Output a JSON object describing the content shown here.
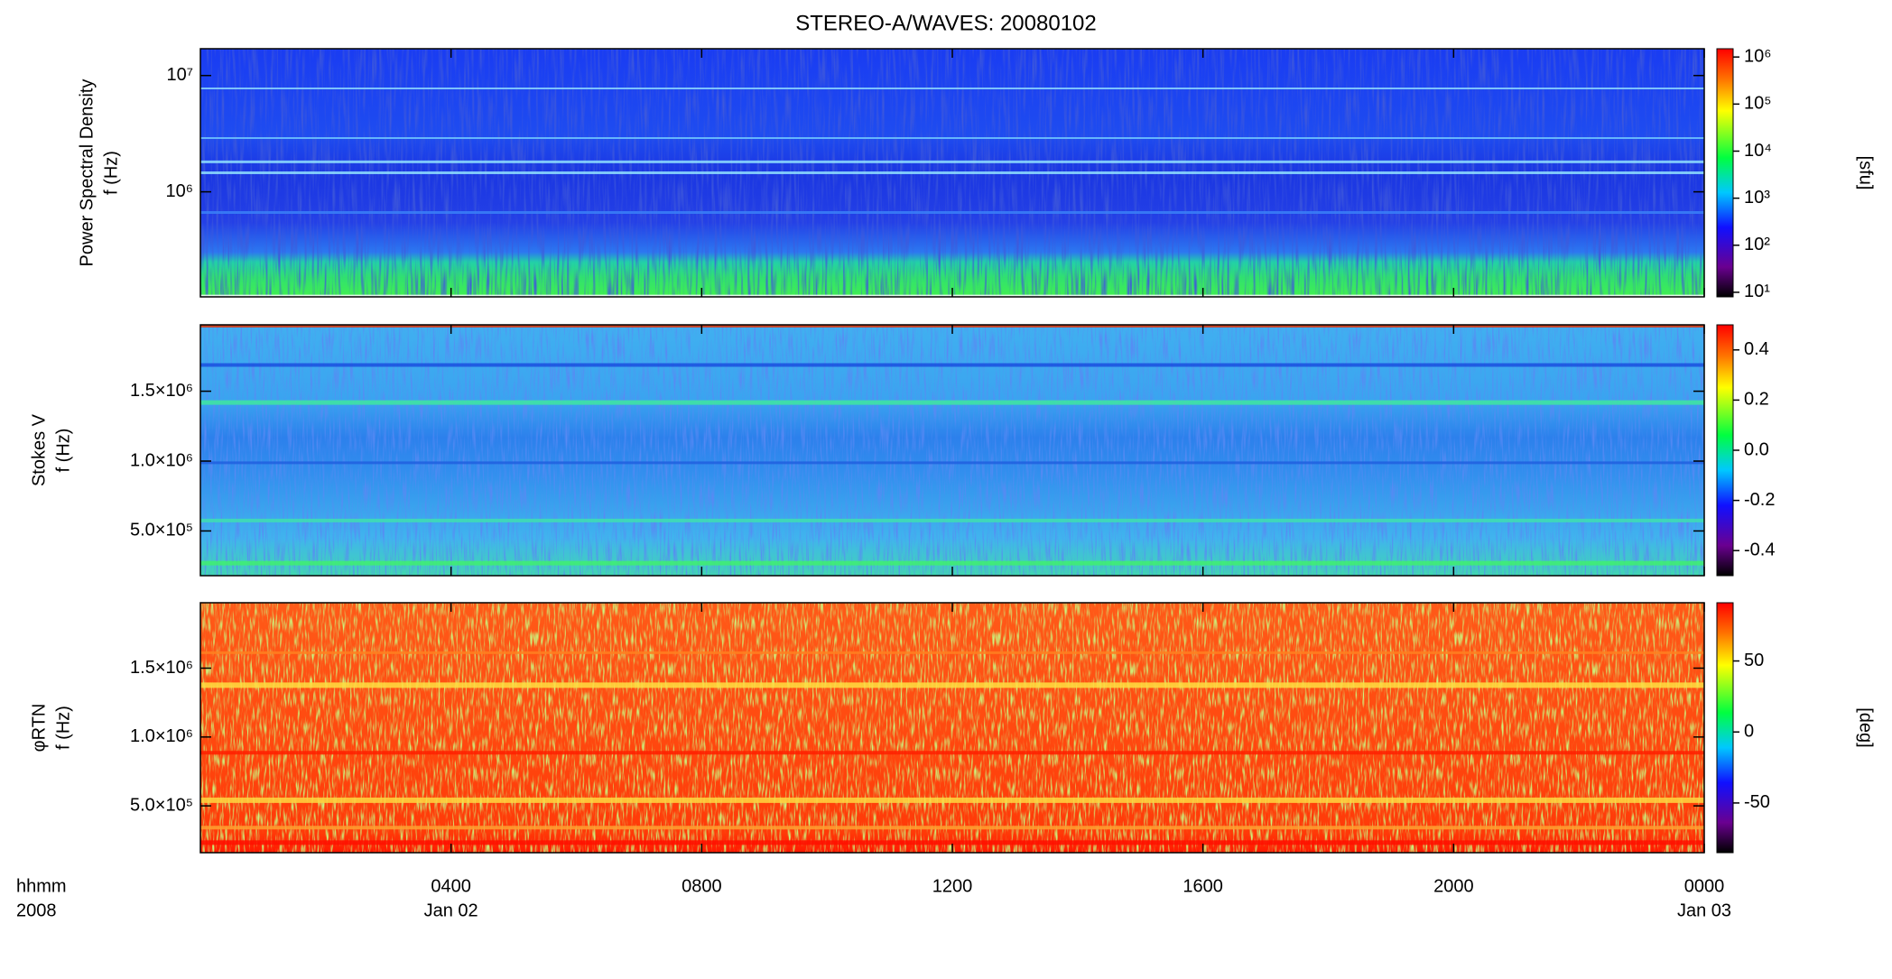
{
  "title": "STEREO-A/WAVES: 20080102",
  "chart_data": [
    {
      "type": "spectrogram",
      "ylabel": [
        "Power Spectral Density",
        "f (Hz)"
      ],
      "xlim": [
        0,
        24
      ],
      "xticks": [
        4,
        8,
        12,
        16,
        20,
        24
      ],
      "ylim": [
        125000,
        17000000
      ],
      "ylog": true,
      "yticks": [
        {
          "value": 1000000,
          "label": "10⁶"
        },
        {
          "value": 10000000,
          "label": "10⁷"
        }
      ],
      "clim": [
        8,
        1500000
      ],
      "clog": true,
      "cticks": [
        {
          "value": 10,
          "label": "10¹"
        },
        {
          "value": 100,
          "label": "10²"
        },
        {
          "value": 1000,
          "label": "10³"
        },
        {
          "value": 10000,
          "label": "10⁴"
        },
        {
          "value": 100000,
          "label": "10⁵"
        },
        {
          "value": 1000000,
          "label": "10⁶"
        }
      ],
      "clabel": "[sfu]"
    },
    {
      "type": "spectrogram",
      "ylabel": [
        "Stokes V",
        "f (Hz)"
      ],
      "xlim": [
        0,
        24
      ],
      "xticks": [
        4,
        8,
        12,
        16,
        20,
        24
      ],
      "ylim": [
        180000,
        1975000
      ],
      "ylog": false,
      "yticks": [
        {
          "value": 500000,
          "label": "5.0×10⁵"
        },
        {
          "value": 1000000,
          "label": "1.0×10⁶"
        },
        {
          "value": 1500000,
          "label": "1.5×10⁶"
        }
      ],
      "clim": [
        -0.5,
        0.5
      ],
      "clog": false,
      "cticks": [
        -0.4,
        -0.2,
        {
          "value": 0,
          "label": "0.0"
        },
        0.2,
        0.4
      ]
    },
    {
      "type": "spectrogram",
      "ylabel": [
        "φRTN",
        "f (Hz)"
      ],
      "xlabel": [
        "hhmm",
        "2008"
      ],
      "xlim": [
        0,
        24
      ],
      "xticks": [
        {
          "value": 4,
          "label": "0400"
        },
        {
          "value": 8,
          "label": "0800"
        },
        {
          "value": 12,
          "label": "1200"
        },
        {
          "value": 16,
          "label": "1600"
        },
        {
          "value": 20,
          "label": "2000"
        },
        {
          "value": 24,
          "label": "0000"
        }
      ],
      "xdate_labels": [
        {
          "value": 4,
          "label": "Jan 02"
        },
        {
          "value": 24,
          "label": "Jan 03"
        }
      ],
      "ylim": [
        160000,
        1975000
      ],
      "ylog": false,
      "yticks": [
        {
          "value": 500000,
          "label": "5.0×10⁵"
        },
        {
          "value": 1000000,
          "label": "1.0×10⁶"
        },
        {
          "value": 1500000,
          "label": "1.5×10⁶"
        }
      ],
      "clim": [
        -85,
        91
      ],
      "clog": false,
      "cticks": [
        -50,
        0,
        50
      ],
      "clabel": "[deg]"
    }
  ]
}
